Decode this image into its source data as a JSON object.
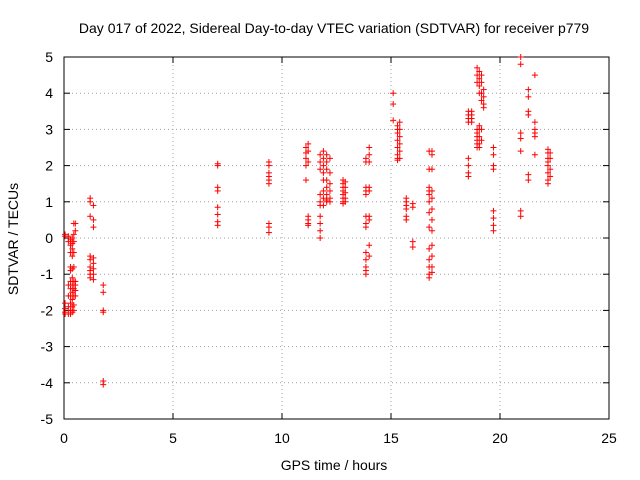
{
  "chart_data": {
    "type": "scatter",
    "title": "Day 017 of 2022, Sidereal Day-to-day VTEC variation (SDTVAR) for receiver p779",
    "xlabel": "GPS time / hours",
    "ylabel": "SDTVAR / TECUs",
    "xlim": [
      0,
      25
    ],
    "ylim": [
      -5,
      5
    ],
    "xticks": [
      0,
      5,
      10,
      15,
      20,
      25
    ],
    "yticks": [
      -5,
      -4,
      -3,
      -2,
      -1,
      0,
      1,
      2,
      3,
      4,
      5
    ],
    "grid": true,
    "marker": "+",
    "series_color": "#ff0000",
    "series": [
      {
        "name": "SDTVAR",
        "clusters": [
          {
            "x": 0.05,
            "ys": [
              0.1,
              0.05,
              -1.8,
              -1.95,
              -2.05,
              -2.1
            ]
          },
          {
            "x": 0.2,
            "ys": [
              0.05,
              -0.1,
              -1.3,
              -1.6,
              -1.9,
              -2.1
            ]
          },
          {
            "x": 0.3,
            "ys": [
              -0.05,
              -0.2,
              -0.4,
              -0.8,
              -0.9,
              -1.2,
              -1.4,
              -1.6,
              -1.8,
              -2.0,
              -2.1
            ]
          },
          {
            "x": 0.38,
            "ys": [
              0.0,
              -0.15,
              -0.3,
              -0.5,
              -0.85,
              -1.1,
              -1.3,
              -1.5,
              -1.7,
              -1.9,
              -2.05
            ]
          },
          {
            "x": 0.45,
            "ys": [
              0.4,
              0.1,
              -0.1,
              -0.4,
              -0.8,
              -1.2,
              -1.4,
              -1.6,
              -1.85,
              -2.0
            ]
          },
          {
            "x": 0.52,
            "ys": [
              0.4,
              0.2,
              -1.2,
              -1.3,
              -1.45,
              -1.6
            ]
          },
          {
            "x": 1.2,
            "ys": [
              1.1,
              1.0,
              0.6,
              -0.5,
              -0.6,
              -0.8,
              -0.9,
              -1.0,
              -1.1
            ]
          },
          {
            "x": 1.35,
            "ys": [
              0.9,
              0.5,
              0.3,
              -0.55,
              -0.7,
              -0.85,
              -1.0,
              -1.15
            ]
          },
          {
            "x": 1.8,
            "ys": [
              -1.3,
              -1.5,
              -2.0,
              -2.05,
              -3.95,
              -4.05
            ]
          },
          {
            "x": 7.05,
            "ys": [
              2.05,
              2.0,
              1.4,
              1.3,
              0.85,
              0.65,
              0.45,
              0.35
            ]
          },
          {
            "x": 9.4,
            "ys": [
              2.1,
              2.0,
              1.8,
              1.7,
              1.6,
              1.5,
              0.4,
              0.3,
              0.15
            ]
          },
          {
            "x": 11.1,
            "ys": [
              2.5,
              2.35,
              2.2,
              2.0,
              1.6
            ]
          },
          {
            "x": 11.2,
            "ys": [
              2.6,
              2.4,
              2.1,
              0.6,
              0.5,
              0.4,
              0.35
            ]
          },
          {
            "x": 11.75,
            "ys": [
              2.3,
              2.1,
              1.9,
              1.2,
              1.0,
              0.9,
              0.6,
              0.4,
              0.2,
              0.0
            ]
          },
          {
            "x": 11.9,
            "ys": [
              2.4,
              2.2,
              2.0,
              1.8,
              1.6,
              1.3,
              1.1,
              0.9
            ]
          },
          {
            "x": 12.05,
            "ys": [
              2.3,
              2.1,
              1.9,
              1.6,
              1.4,
              1.2,
              1.05,
              1.0
            ]
          },
          {
            "x": 12.2,
            "ys": [
              2.2,
              1.8,
              1.5,
              1.3,
              1.1,
              1.0
            ]
          },
          {
            "x": 12.8,
            "ys": [
              1.6,
              1.5,
              1.4,
              1.3,
              1.2,
              1.1,
              1.0,
              0.95
            ]
          },
          {
            "x": 12.9,
            "ys": [
              1.55,
              1.4,
              1.25,
              1.1,
              1.0
            ]
          },
          {
            "x": 13.85,
            "ys": [
              2.2,
              2.1,
              1.4,
              1.3,
              1.2,
              0.6,
              0.4,
              0.3,
              -0.4,
              -0.6,
              -0.8,
              -0.9,
              -1.0
            ]
          },
          {
            "x": 14.0,
            "ys": [
              2.5,
              2.3,
              2.1,
              1.4,
              1.3,
              0.6,
              0.5,
              -0.2,
              -0.5
            ]
          },
          {
            "x": 15.1,
            "ys": [
              4.0,
              3.7,
              3.25
            ]
          },
          {
            "x": 15.3,
            "ys": [
              3.1,
              3.0,
              2.9,
              2.7,
              2.5,
              2.3,
              2.2,
              2.15
            ]
          },
          {
            "x": 15.4,
            "ys": [
              3.2,
              3.0,
              2.8,
              2.6,
              2.4,
              2.2
            ]
          },
          {
            "x": 15.7,
            "ys": [
              1.1,
              1.0,
              0.9,
              0.8,
              0.6,
              0.5
            ]
          },
          {
            "x": 16.0,
            "ys": [
              0.95,
              0.85,
              -0.1,
              -0.25
            ]
          },
          {
            "x": 16.75,
            "ys": [
              2.4,
              1.9,
              1.4,
              1.3,
              1.2,
              1.0,
              0.7,
              0.3,
              -0.3,
              -0.6,
              -0.8,
              -1.0,
              -1.1
            ]
          },
          {
            "x": 16.88,
            "ys": [
              2.4,
              2.3,
              1.9,
              1.3,
              1.1,
              0.8,
              0.5,
              0.2,
              -0.2,
              -0.5,
              -0.8,
              -0.95
            ]
          },
          {
            "x": 18.55,
            "ys": [
              3.5,
              3.4,
              3.3,
              3.2,
              2.2,
              2.0,
              1.8,
              1.7
            ]
          },
          {
            "x": 18.7,
            "ys": [
              3.5,
              3.4,
              3.3,
              3.2
            ]
          },
          {
            "x": 18.95,
            "ys": [
              4.7,
              4.5,
              4.3,
              3.0,
              2.9,
              2.8,
              2.7,
              2.6,
              2.5
            ]
          },
          {
            "x": 19.05,
            "ys": [
              4.6,
              4.4,
              4.2,
              4.0,
              3.1,
              3.0,
              2.8,
              2.6,
              2.5
            ]
          },
          {
            "x": 19.15,
            "ys": [
              4.5,
              4.3,
              4.0,
              3.8,
              3.0,
              2.7
            ]
          },
          {
            "x": 19.25,
            "ys": [
              4.1,
              3.9,
              3.7,
              3.6
            ]
          },
          {
            "x": 19.7,
            "ys": [
              2.5,
              2.3,
              2.0,
              1.9,
              0.75,
              0.55,
              0.35,
              0.2
            ]
          },
          {
            "x": 20.95,
            "ys": [
              5.0,
              4.8,
              2.9,
              2.75,
              2.4,
              0.75,
              0.6
            ]
          },
          {
            "x": 21.3,
            "ys": [
              4.1,
              3.9,
              3.5,
              3.4,
              1.75,
              1.6
            ]
          },
          {
            "x": 21.6,
            "ys": [
              4.5,
              3.2,
              3.0,
              2.9,
              2.8,
              2.3
            ]
          },
          {
            "x": 22.2,
            "ys": [
              2.45,
              2.35,
              2.2,
              2.1,
              2.0,
              1.8,
              1.6,
              1.5
            ]
          },
          {
            "x": 22.3,
            "ys": [
              2.35,
              2.2,
              1.9,
              1.7
            ]
          }
        ]
      }
    ]
  }
}
